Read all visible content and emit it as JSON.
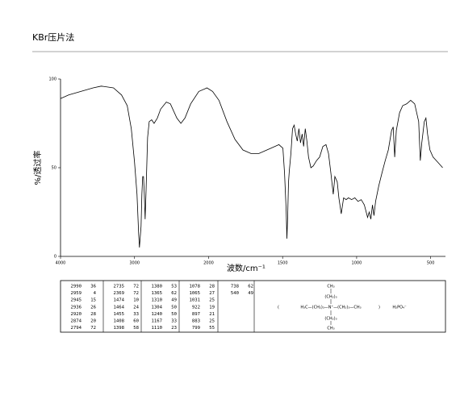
{
  "header": {
    "title": "KBr压片法"
  },
  "chart_data": {
    "type": "line",
    "x_label": "波数/cm⁻¹",
    "y_label": "%/透过率",
    "xlim": [
      4000,
      400
    ],
    "x_scale_break": 2000,
    "ylim": [
      0,
      100
    ],
    "xticks": [
      4000,
      3000,
      2000,
      1500,
      1000,
      500
    ],
    "yticks": [
      100,
      50,
      0
    ],
    "series": [
      {
        "color": "#000000",
        "x": [
          4000,
          3890,
          3725,
          3560,
          3450,
          3285,
          3176,
          3099,
          3044,
          3000,
          2967,
          2945,
          2934,
          2912,
          2901,
          2890,
          2879,
          2868,
          2857,
          2846,
          2824,
          2802,
          2769,
          2736,
          2692,
          2648,
          2571,
          2516,
          2429,
          2374,
          2319,
          2242,
          2132,
          2022,
          1973,
          1930,
          1876,
          1822,
          1768,
          1714,
          1660,
          1606,
          1552,
          1525,
          1498,
          1487,
          1476,
          1471,
          1466,
          1460,
          1455,
          1444,
          1433,
          1422,
          1412,
          1401,
          1390,
          1379,
          1368,
          1358,
          1347,
          1336,
          1325,
          1309,
          1293,
          1271,
          1250,
          1228,
          1207,
          1190,
          1174,
          1158,
          1147,
          1131,
          1120,
          1104,
          1088,
          1071,
          1055,
          1034,
          1012,
          991,
          969,
          948,
          926,
          915,
          904,
          893,
          883,
          872,
          850,
          829,
          807,
          786,
          764,
          753,
          743,
          732,
          710,
          689,
          662,
          635,
          608,
          581,
          570,
          560,
          543,
          532,
          521,
          505,
          484,
          451,
          419
        ],
        "values": [
          89,
          91,
          93,
          95,
          96,
          95,
          91,
          85,
          72,
          53,
          35,
          13,
          5,
          17,
          35,
          45,
          45,
          35,
          21,
          35,
          67,
          76,
          77,
          75,
          78,
          83,
          87,
          86,
          78,
          75,
          78,
          86,
          93,
          95,
          93,
          88,
          76,
          66,
          60,
          58,
          58,
          60,
          62,
          63,
          61,
          47,
          26,
          10,
          22,
          42,
          48,
          58,
          72,
          74,
          69,
          65,
          72,
          64,
          69,
          62,
          72,
          65,
          56,
          50,
          51,
          54,
          56,
          62,
          63,
          58,
          47,
          35,
          45,
          42,
          33,
          24,
          33,
          32,
          33,
          32,
          33,
          31,
          32,
          29,
          22,
          25,
          21,
          29,
          23,
          31,
          40,
          47,
          54,
          60,
          71,
          73,
          56,
          71,
          81,
          85,
          86,
          88,
          86,
          76,
          54,
          64,
          76,
          78,
          69,
          60,
          56,
          53,
          50
        ]
      }
    ]
  },
  "peak_table": {
    "columns": [
      [
        [
          "2990",
          "36"
        ],
        [
          "2959",
          "4"
        ],
        [
          "2945",
          "15"
        ],
        [
          "2936",
          "26"
        ],
        [
          "2920",
          "28"
        ],
        [
          "2874",
          "20"
        ],
        [
          "2794",
          "72"
        ]
      ],
      [
        [
          "2735",
          "72"
        ],
        [
          "2369",
          "72"
        ],
        [
          "1474",
          "10"
        ],
        [
          "1464",
          "24"
        ],
        [
          "1455",
          "33"
        ],
        [
          "1408",
          "60"
        ],
        [
          "1398",
          "58"
        ]
      ],
      [
        [
          "1380",
          "53"
        ],
        [
          "1365",
          "62"
        ],
        [
          "1310",
          "49"
        ],
        [
          "1304",
          "50"
        ],
        [
          "1240",
          "50"
        ],
        [
          "1167",
          "33"
        ],
        [
          "1110",
          "23"
        ]
      ],
      [
        [
          "1078",
          "28"
        ],
        [
          "1065",
          "27"
        ],
        [
          "1031",
          "25"
        ],
        [
          "922",
          "19"
        ],
        [
          "897",
          "21"
        ],
        [
          "883",
          "25"
        ],
        [
          "799",
          "55"
        ]
      ],
      [
        [
          "738",
          "62"
        ],
        [
          "540",
          "49"
        ]
      ]
    ]
  },
  "structure": {
    "top": [
      "CH₃",
      "(CH₂)₃"
    ],
    "bottom": [
      "(CH₂)₃",
      "CH₃"
    ],
    "open": "(",
    "chain": "H₃C—(CH₂)₃—N⁺—(CH₂)₃—CH₃",
    "close": ")",
    "anion": "H₂PO₄⁻"
  }
}
